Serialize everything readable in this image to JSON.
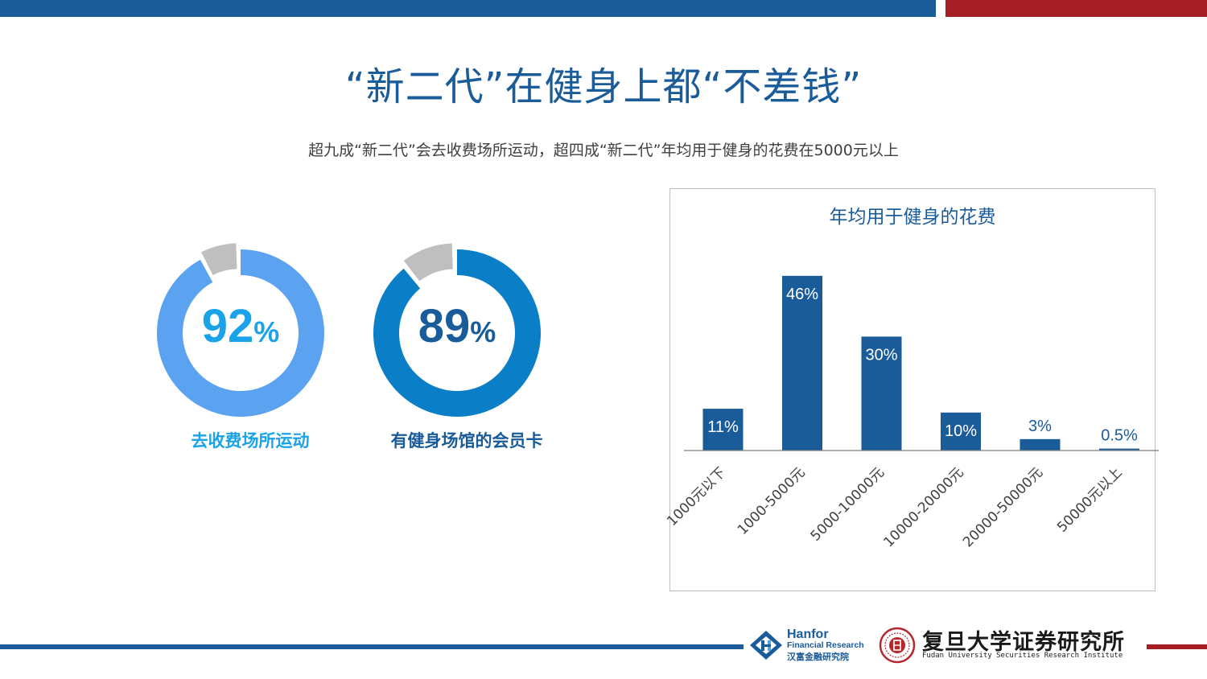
{
  "header": {
    "title": "“新二代”在健身上都“不差钱”",
    "subtitle": "超九成“新二代”会去收费场所运动，超四成“新二代”年均用于健身的花费在5000元以上"
  },
  "donuts": [
    {
      "value": 92,
      "number": "92",
      "unit": "%",
      "label": "去收费场所运动",
      "color": "#5ba3f0",
      "text_color": "#1aa3e8",
      "remainder_color": "#bfbfbf"
    },
    {
      "value": 89,
      "number": "89",
      "unit": "%",
      "label": "有健身场馆的会员卡",
      "color": "#0a7ec6",
      "text_color": "#1a5b99",
      "remainder_color": "#bfbfbf"
    }
  ],
  "chart_data": {
    "type": "bar",
    "title": "年均用于健身的花费",
    "categories": [
      "1000元以下",
      "1000-5000元",
      "5000-10000元",
      "10000-20000元",
      "20000-50000元",
      "50000元以上"
    ],
    "values": [
      11,
      46,
      30,
      10,
      3,
      0.5
    ],
    "data_labels": [
      "11%",
      "46%",
      "30%",
      "10%",
      "3%",
      "0.5%"
    ],
    "unit": "%",
    "ylim": [
      0,
      50
    ],
    "bar_color": "#1a5b99",
    "grid": false,
    "legend": "none"
  },
  "footer": {
    "hanfor_name": "Hanfor",
    "hanfor_sub": "Financial Research",
    "hanfor_cn": "汉富金融研究院",
    "fudan_name": "复旦大学证券研究所",
    "fudan_sub": "Fudan University Securities Research Institute"
  },
  "colors": {
    "brand_blue": "#1a5b99",
    "brand_red": "#a51e24"
  }
}
